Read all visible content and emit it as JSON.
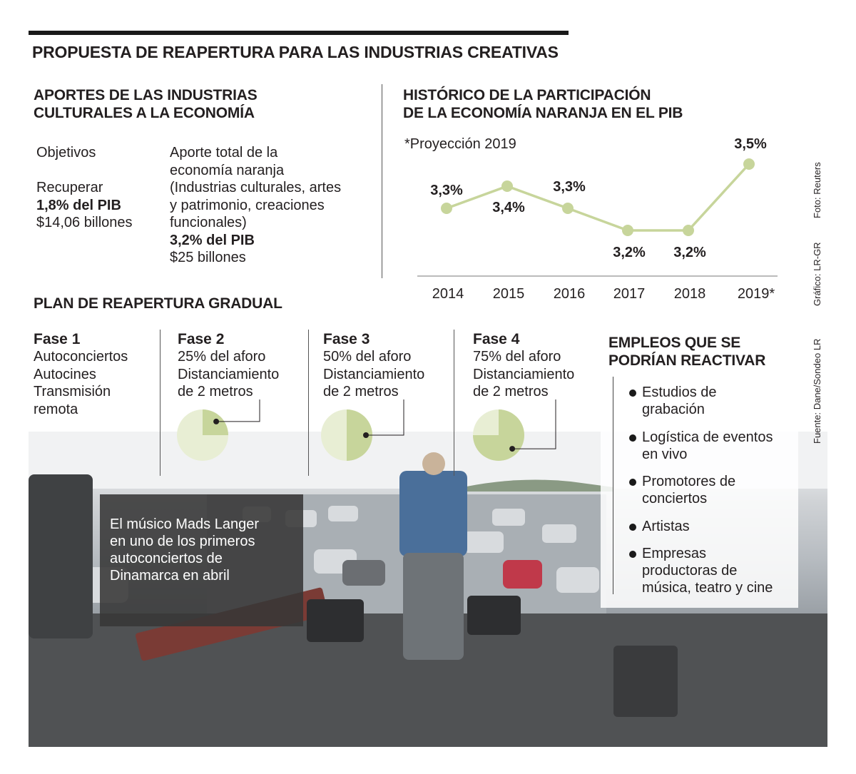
{
  "main_title": "PROPUESTA DE REAPERTURA PARA LAS INDUSTRIAS CREATIVAS",
  "aportes": {
    "title_line1": "APORTES DE LAS INDUSTRIAS",
    "title_line2": "CULTURALES A LA ECONOMÍA",
    "objetivos_label": "Objetivos",
    "recuperar_label": "Recuperar",
    "recuperar_pct": "1,8% del PIB",
    "recuperar_amount": "$14,06 billones",
    "aporte_line1": "Aporte total de la",
    "aporte_line2": "economía naranja",
    "aporte_line3": "(Industrias culturales, artes",
    "aporte_line4": "y patrimonio, creaciones",
    "aporte_line5": "funcionales)",
    "aporte_pct": "3,2% del PIB",
    "aporte_amount": "$25 billones"
  },
  "chart_data": {
    "type": "line",
    "title": "HISTÓRICO DE LA PARTICIPACIÓN DE LA ECONOMÍA NARANJA EN EL PIB",
    "title_line1": "HISTÓRICO DE LA PARTICIPACIÓN",
    "title_line2": "DE LA ECONOMÍA NARANJA EN EL PIB",
    "note": "*Proyección 2019",
    "categories": [
      "2014",
      "2015",
      "2016",
      "2017",
      "2018",
      "2019*"
    ],
    "values": [
      3.3,
      3.4,
      3.3,
      3.2,
      3.2,
      3.5
    ],
    "labels": [
      "3,3%",
      "3,4%",
      "3,3%",
      "3,2%",
      "3,2%",
      "3,5%"
    ],
    "series_color": "#c7d59b",
    "ylim": [
      3.0,
      3.6
    ],
    "grid": false,
    "ylabel": "",
    "xlabel": ""
  },
  "plan": {
    "title": "PLAN DE REAPERTURA GRADUAL",
    "fases": [
      {
        "title": "Fase 1",
        "lines": [
          "Autoconciertos",
          "Autocines",
          "Transmisión",
          "remota"
        ],
        "aforo_fraction": null
      },
      {
        "title": "Fase 2",
        "lines": [
          "25% del aforo",
          "Distanciamiento",
          "de 2 metros"
        ],
        "aforo_fraction": 0.25
      },
      {
        "title": "Fase 3",
        "lines": [
          "50% del aforo",
          "Distanciamiento",
          "de 2 metros"
        ],
        "aforo_fraction": 0.5
      },
      {
        "title": "Fase 4",
        "lines": [
          "75% del aforo",
          "Distanciamiento",
          "de 2 metros"
        ],
        "aforo_fraction": 0.75
      }
    ],
    "pie_fill_color": "#c7d59b",
    "pie_bg_color": "#e8eed4"
  },
  "empleos": {
    "title_line1": "EMPLEOS QUE SE",
    "title_line2": "PODRÍAN REACTIVAR",
    "items": [
      [
        "Estudios de",
        "grabación"
      ],
      [
        "Logística de eventos",
        "en vivo"
      ],
      [
        "Promotores de",
        "conciertos"
      ],
      [
        "Artistas"
      ],
      [
        "Empresas",
        "productoras de",
        "música, teatro y cine"
      ]
    ]
  },
  "caption": "El músico Mads Langer\n en uno de los primeros\n autoconciertos de\nDinamarca en abril",
  "credits": {
    "foto": "Foto: Reuters",
    "grafico": "Gráfico: LR-GR",
    "fuente": "Fuente: Dane/Sondeo LR"
  }
}
